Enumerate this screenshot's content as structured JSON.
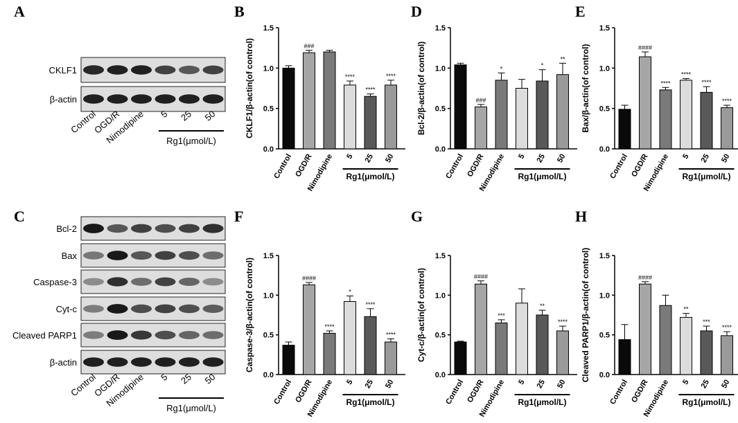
{
  "panels": {
    "A": "A",
    "B": "B",
    "C": "C",
    "D": "D",
    "E": "E",
    "F": "F",
    "G": "G",
    "H": "H"
  },
  "blot_A": {
    "rows": [
      "CKLF1",
      "β-actin"
    ],
    "categories": [
      "Control",
      "OGD/R",
      "Nimodipine",
      "5",
      "25",
      "50"
    ],
    "group_label": "Rg1(μmol/L)"
  },
  "blot_C": {
    "rows": [
      "Bcl-2",
      "Bax",
      "Caspase-3",
      "Cyt-c",
      "Cleaved PARP1",
      "β-actin"
    ],
    "categories": [
      "Control",
      "OGD/R",
      "Nimodipine",
      "5",
      "25",
      "50"
    ],
    "group_label": "Rg1(μmol/L)"
  },
  "chart_data": [
    {
      "panel": "B",
      "type": "bar",
      "categories": [
        "Control",
        "OGD/R",
        "Nimodipine",
        "5",
        "25",
        "50"
      ],
      "values": [
        1.0,
        1.19,
        1.2,
        0.79,
        0.65,
        0.79
      ],
      "errors": [
        0.03,
        0.03,
        0.02,
        0.05,
        0.03,
        0.06
      ],
      "significance": [
        "",
        "###",
        "",
        "****",
        "****",
        "****"
      ],
      "ylabel": "CKLF1/β-actin(of control)",
      "ylim": [
        0,
        1.5
      ],
      "yticks": [
        "0.0",
        "0.5",
        "1.0",
        "1.5"
      ],
      "group_label": "Rg1(μmol/L)"
    },
    {
      "panel": "D",
      "type": "bar",
      "categories": [
        "Control",
        "OGD/R",
        "Nimodipine",
        "5",
        "25",
        "50"
      ],
      "values": [
        1.04,
        0.52,
        0.85,
        0.75,
        0.84,
        0.92
      ],
      "errors": [
        0.02,
        0.03,
        0.09,
        0.11,
        0.14,
        0.14
      ],
      "significance": [
        "",
        "###",
        "*",
        "",
        "*",
        "**"
      ],
      "ylabel": "Bcl-2/β-actin(of control)",
      "ylim": [
        0,
        1.5
      ],
      "yticks": [
        "0.0",
        "0.5",
        "1.0",
        "1.5"
      ],
      "group_label": "Rg1(μmol/L)"
    },
    {
      "panel": "E",
      "type": "bar",
      "categories": [
        "Control",
        "OGD/R",
        "Nimodipine",
        "5",
        "25",
        "50"
      ],
      "values": [
        0.49,
        1.14,
        0.73,
        0.85,
        0.7,
        0.51
      ],
      "errors": [
        0.05,
        0.06,
        0.03,
        0.02,
        0.07,
        0.03
      ],
      "significance": [
        "",
        "####",
        "****",
        "****",
        "****",
        "****"
      ],
      "ylabel": "Bax/β-actin(of control)",
      "ylim": [
        0,
        1.5
      ],
      "yticks": [
        "0.0",
        "0.5",
        "1.0",
        "1.5"
      ],
      "group_label": "Rg1(μmol/L)"
    },
    {
      "panel": "F",
      "type": "bar",
      "categories": [
        "Control",
        "OGD/R",
        "Nimodipine",
        "5",
        "25",
        "50"
      ],
      "values": [
        0.37,
        1.13,
        0.52,
        0.92,
        0.73,
        0.41
      ],
      "errors": [
        0.04,
        0.03,
        0.03,
        0.07,
        0.1,
        0.04
      ],
      "significance": [
        "",
        "####",
        "****",
        "*",
        "****",
        "****"
      ],
      "ylabel": "Caspase-3/β-actin(of control)",
      "ylim": [
        0,
        1.5
      ],
      "yticks": [
        "0.0",
        "0.5",
        "1.0",
        "1.5"
      ],
      "group_label": "Rg1(μmol/L)"
    },
    {
      "panel": "G",
      "type": "bar",
      "categories": [
        "Control",
        "OGD/R",
        "Nimodipine",
        "5",
        "25",
        "50"
      ],
      "values": [
        0.41,
        1.14,
        0.65,
        0.9,
        0.75,
        0.55
      ],
      "errors": [
        0.01,
        0.04,
        0.04,
        0.18,
        0.06,
        0.06
      ],
      "significance": [
        "",
        "####",
        "***",
        "",
        "**",
        "****"
      ],
      "ylabel": "Cyt-c/β-actin(of control)",
      "ylim": [
        0,
        1.5
      ],
      "yticks": [
        "0.0",
        "0.5",
        "1.0",
        "1.5"
      ],
      "group_label": "Rg1(μmol/L)"
    },
    {
      "panel": "H",
      "type": "bar",
      "categories": [
        "Control",
        "OGD/R",
        "Nimodipine",
        "5",
        "25",
        "50"
      ],
      "values": [
        0.44,
        1.14,
        0.87,
        0.72,
        0.55,
        0.49
      ],
      "errors": [
        0.19,
        0.03,
        0.13,
        0.05,
        0.06,
        0.05
      ],
      "significance": [
        "",
        "####",
        "",
        "**",
        "***",
        "****"
      ],
      "ylabel": "Cleaved PARP1/β-actin(of control)",
      "ylim": [
        0,
        1.5
      ],
      "yticks": [
        "0.0",
        "0.5",
        "1.0",
        "1.5"
      ],
      "group_label": "Rg1(μmol/L)"
    }
  ],
  "colors": {
    "bar_fills": [
      "#0a0a0a",
      "#a6a6a6",
      "#7a7a7a",
      "#dcdcdc",
      "#595959",
      "#9a9a9a"
    ],
    "blot_bg": "#dedede",
    "band": "#111111"
  },
  "blot_intensity": {
    "A": [
      [
        0.85,
        0.9,
        0.9,
        0.7,
        0.55,
        0.7
      ],
      [
        0.9,
        0.9,
        0.9,
        0.9,
        0.9,
        0.9
      ]
    ],
    "C": [
      [
        0.95,
        0.55,
        0.7,
        0.6,
        0.7,
        0.8
      ],
      [
        0.35,
        0.95,
        0.55,
        0.7,
        0.6,
        0.4
      ],
      [
        0.2,
        0.8,
        0.4,
        0.7,
        0.45,
        0.2
      ],
      [
        0.3,
        0.95,
        0.6,
        0.7,
        0.6,
        0.5
      ],
      [
        0.3,
        0.95,
        0.75,
        0.6,
        0.45,
        0.4
      ],
      [
        0.9,
        0.9,
        0.9,
        0.9,
        0.9,
        0.9
      ]
    ]
  }
}
